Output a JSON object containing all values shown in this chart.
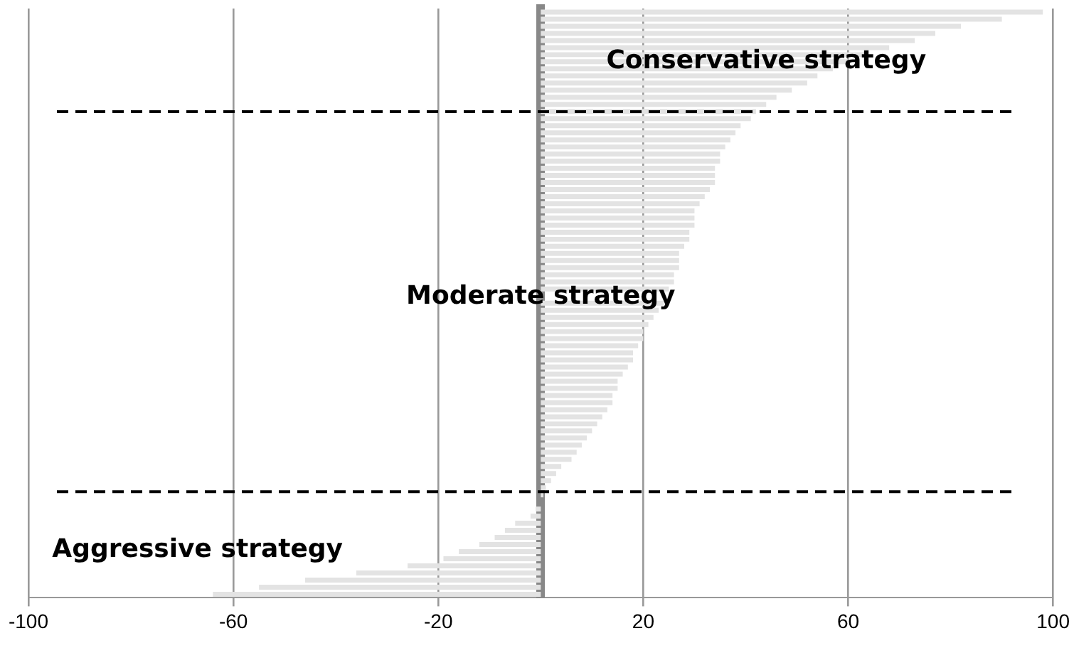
{
  "chart_data": {
    "type": "bar",
    "orientation": "horizontal",
    "categories": [
      null,
      null,
      null,
      null,
      null,
      null,
      null,
      null,
      null,
      null,
      null,
      null,
      null,
      null,
      null,
      null,
      null,
      null,
      null,
      null,
      null,
      null,
      null,
      null,
      null,
      null,
      null,
      null,
      null,
      null,
      null,
      null,
      null,
      null,
      null,
      null,
      null,
      null,
      null,
      null,
      null,
      null,
      null,
      null,
      null,
      null,
      null,
      null,
      null,
      null,
      null,
      null,
      null,
      null,
      null,
      null,
      null,
      null,
      null,
      null,
      null,
      null,
      null,
      null,
      null,
      null,
      null,
      null,
      null,
      null,
      null,
      null,
      null,
      null,
      null,
      null,
      null,
      null,
      null,
      null,
      null,
      null,
      null
    ],
    "values": [
      98,
      90,
      82,
      77,
      73,
      68,
      64,
      60,
      57,
      54,
      52,
      49,
      46,
      44,
      42,
      41,
      39,
      38,
      37,
      36,
      35,
      35,
      34,
      34,
      34,
      33,
      32,
      31,
      30,
      30,
      30,
      29,
      29,
      28,
      27,
      27,
      27,
      26,
      26,
      25,
      null,
      24,
      23,
      22,
      21,
      20,
      20,
      19,
      18,
      18,
      17,
      16,
      15,
      15,
      14,
      14,
      13,
      12,
      11,
      10,
      9,
      8,
      7,
      6,
      4,
      3,
      2,
      1,
      0.5,
      null,
      -1,
      -2,
      -5,
      -7,
      -9,
      -12,
      -16,
      -19,
      -26,
      -36,
      -46,
      -55,
      -64
    ],
    "color": "#e3e3e3",
    "xlim": [
      -100,
      100
    ],
    "xticks": [
      -100,
      -60,
      -20,
      20,
      60,
      100
    ],
    "grid": "x",
    "annotations": [
      "Conservative strategy",
      "Moderate strategy",
      "Aggressive strategy"
    ]
  }
}
